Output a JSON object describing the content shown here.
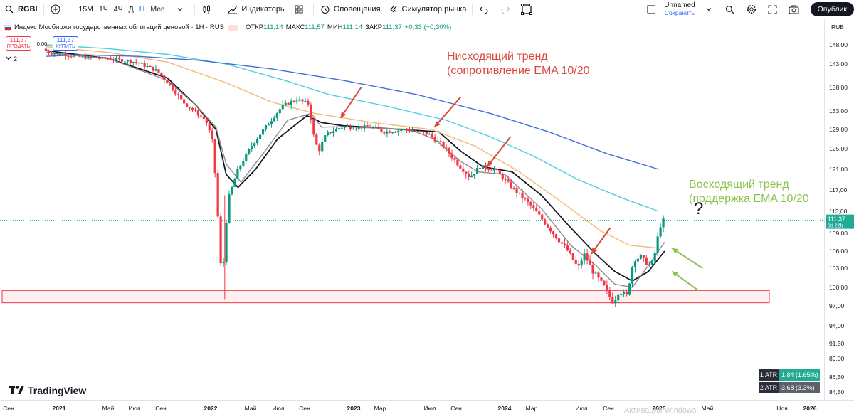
{
  "toolbar": {
    "symbol": "RGBI",
    "timeframes": [
      "15М",
      "1Ч",
      "4Ч",
      "Д",
      "Н",
      "Мес"
    ],
    "active_timeframe": "Н",
    "indicators_label": "Индикаторы",
    "alerts_label": "Оповещения",
    "replay_label": "Симулятор рынка",
    "layout_name": "Unnamed",
    "layout_save": "Сохранить",
    "publish_label": "Опублик"
  },
  "legend": {
    "title": "Индекс Мосбиржи государственных облигаций ценовой · 1Н · RUS",
    "open_label": "ОТКР",
    "open": "111,14",
    "high_label": "МАКС",
    "high": "111,57",
    "low_label": "МИН",
    "low": "111,14",
    "close_label": "ЗАКР",
    "close": "111,37",
    "change": "+0,33 (+0,30%)"
  },
  "trade": {
    "sell_price": "111,37",
    "sell_label": "ПРОДАТЬ",
    "spread": "0,00",
    "buy_price": "111,37",
    "buy_label": "КУПИТЬ"
  },
  "indicator_count": "2",
  "currency": "RUB",
  "annotations": {
    "down_line1": "Нисходящий тренд",
    "down_line2": "(сопротивление EMA 10/20",
    "up_line1": "Восходящий тренд",
    "up_line2": "(поддержка EMA 10/20",
    "question": "?"
  },
  "logo_text": "TradingView",
  "atr": [
    {
      "label": "1 ATR",
      "value": "1.84 (1.65%)"
    },
    {
      "label": "2 ATR",
      "value": "3.68 (3.3%)"
    }
  ],
  "watermark": "Активация Windows",
  "price_tag": {
    "value": "111,37",
    "countdown": "3d 22h"
  },
  "colors": {
    "up": "#089981",
    "down": "#f23645",
    "accent": "#2962ff",
    "annot_down": "#d9483b",
    "annot_up": "#8bc34a"
  },
  "chart_data": {
    "type": "candlestick",
    "y_ticks": [
      "148,00",
      "143,00",
      "138,00",
      "133,00",
      "129,00",
      "125,00",
      "121,00",
      "117,00",
      "113,00",
      "109,00",
      "106,00",
      "103,00",
      "100,00",
      "97,00",
      "94,00",
      "91,50",
      "89,00",
      "86,50",
      "84,50"
    ],
    "y_tick_values": [
      148,
      143,
      138,
      133,
      129,
      125,
      121,
      117,
      113,
      109,
      106,
      103,
      100,
      97,
      94,
      91.5,
      89,
      86.5,
      84.5
    ],
    "x_ticks": [
      "Сен",
      "2021",
      "Май",
      "Июл",
      "Сен",
      "2022",
      "Май",
      "Июл",
      "Сен",
      "2023",
      "Мар",
      "Июл",
      "Сен",
      "2024",
      "Мар",
      "Июл",
      "Сен",
      "2025",
      "Май",
      "Ноя",
      "2026"
    ],
    "support_zone": [
      97.5,
      99.5
    ],
    "last_price": 111.37,
    "price_path": [
      [
        2020.97,
        147.0
      ],
      [
        2021.0,
        146.0
      ],
      [
        2021.1,
        145.5
      ],
      [
        2021.25,
        144.7
      ],
      [
        2021.45,
        144.3
      ],
      [
        2021.6,
        143.5
      ],
      [
        2021.75,
        141.5
      ],
      [
        2021.85,
        138.0
      ],
      [
        2021.92,
        135.0
      ],
      [
        2022.0,
        133.0
      ],
      [
        2022.08,
        131.0
      ],
      [
        2022.13,
        126.0
      ],
      [
        2022.16,
        113.0
      ],
      [
        2022.19,
        100.0
      ],
      [
        2022.23,
        115.0
      ],
      [
        2022.3,
        121.0
      ],
      [
        2022.4,
        126.0
      ],
      [
        2022.5,
        130.0
      ],
      [
        2022.6,
        134.0
      ],
      [
        2022.7,
        135.5
      ],
      [
        2022.78,
        134.5
      ],
      [
        2022.82,
        127.0
      ],
      [
        2022.85,
        124.5
      ],
      [
        2022.9,
        128.0
      ],
      [
        2023.0,
        129.5
      ],
      [
        2023.2,
        129.5
      ],
      [
        2023.3,
        128.5
      ],
      [
        2023.45,
        129.0
      ],
      [
        2023.6,
        128.0
      ],
      [
        2023.7,
        125.5
      ],
      [
        2023.8,
        122.0
      ],
      [
        2023.88,
        119.5
      ],
      [
        2023.95,
        121.5
      ],
      [
        2024.05,
        121.0
      ],
      [
        2024.15,
        118.0
      ],
      [
        2024.3,
        114.0
      ],
      [
        2024.45,
        109.0
      ],
      [
        2024.55,
        106.0
      ],
      [
        2024.62,
        103.0
      ],
      [
        2024.66,
        105.5
      ],
      [
        2024.72,
        102.5
      ],
      [
        2024.8,
        100.0
      ],
      [
        2024.86,
        97.5
      ],
      [
        2024.9,
        99.5
      ],
      [
        2024.95,
        98.5
      ],
      [
        2025.0,
        104.5
      ],
      [
        2025.05,
        105.0
      ],
      [
        2025.1,
        103.5
      ],
      [
        2025.13,
        104.0
      ],
      [
        2025.16,
        108.0
      ],
      [
        2025.19,
        111.37
      ]
    ],
    "series": [
      {
        "name": "EMA 10",
        "color": "#131722",
        "points": [
          [
            2020.97,
            146.5
          ],
          [
            2021.4,
            144.4
          ],
          [
            2021.8,
            140.0
          ],
          [
            2022.0,
            134.0
          ],
          [
            2022.13,
            129.0
          ],
          [
            2022.2,
            120.0
          ],
          [
            2022.28,
            117.5
          ],
          [
            2022.4,
            121.0
          ],
          [
            2022.55,
            127.0
          ],
          [
            2022.75,
            132.0
          ],
          [
            2022.85,
            130.5
          ],
          [
            2023.0,
            129.8
          ],
          [
            2023.4,
            129.0
          ],
          [
            2023.65,
            128.5
          ],
          [
            2023.8,
            124.5
          ],
          [
            2023.95,
            121.5
          ],
          [
            2024.15,
            120.5
          ],
          [
            2024.35,
            116.0
          ],
          [
            2024.55,
            110.0
          ],
          [
            2024.72,
            105.5
          ],
          [
            2024.85,
            102.5
          ],
          [
            2024.97,
            101.0
          ],
          [
            2025.08,
            102.5
          ],
          [
            2025.19,
            106.0
          ]
        ]
      },
      {
        "name": "EMA 20",
        "color": "#8c8c8c",
        "points": [
          [
            2020.97,
            146.0
          ],
          [
            2021.4,
            144.4
          ],
          [
            2021.8,
            139.5
          ],
          [
            2022.0,
            134.0
          ],
          [
            2022.13,
            129.5
          ],
          [
            2022.2,
            122.0
          ],
          [
            2022.3,
            118.5
          ],
          [
            2022.45,
            124.0
          ],
          [
            2022.62,
            131.0
          ],
          [
            2022.78,
            132.5
          ],
          [
            2022.85,
            129.5
          ],
          [
            2023.0,
            129.6
          ],
          [
            2023.45,
            129.0
          ],
          [
            2023.62,
            127.0
          ],
          [
            2023.8,
            122.5
          ],
          [
            2023.92,
            120.5
          ],
          [
            2024.1,
            120.0
          ],
          [
            2024.35,
            113.5
          ],
          [
            2024.55,
            107.0
          ],
          [
            2024.72,
            103.5
          ],
          [
            2024.85,
            100.5
          ],
          [
            2024.97,
            100.0
          ],
          [
            2025.08,
            103.5
          ],
          [
            2025.19,
            107.5
          ]
        ]
      },
      {
        "name": "EMA 50",
        "color": "#f5b971",
        "points": [
          [
            2020.97,
            147.5
          ],
          [
            2021.4,
            146.0
          ],
          [
            2021.8,
            143.5
          ],
          [
            2022.2,
            139.0
          ],
          [
            2022.5,
            135.0
          ],
          [
            2022.8,
            132.5
          ],
          [
            2023.2,
            130.5
          ],
          [
            2023.6,
            129.0
          ],
          [
            2023.9,
            125.5
          ],
          [
            2024.2,
            120.5
          ],
          [
            2024.5,
            114.5
          ],
          [
            2024.75,
            109.5
          ],
          [
            2024.95,
            107.0
          ],
          [
            2025.15,
            106.5
          ]
        ]
      },
      {
        "name": "EMA 100",
        "color": "#4dd0e1",
        "points": [
          [
            2020.97,
            148.0
          ],
          [
            2021.4,
            147.0
          ],
          [
            2021.8,
            145.5
          ],
          [
            2022.2,
            143.0
          ],
          [
            2022.6,
            139.5
          ],
          [
            2022.9,
            136.5
          ],
          [
            2023.3,
            134.0
          ],
          [
            2023.7,
            131.0
          ],
          [
            2024.0,
            127.5
          ],
          [
            2024.3,
            123.5
          ],
          [
            2024.6,
            119.0
          ],
          [
            2024.9,
            115.5
          ],
          [
            2025.15,
            113.0
          ]
        ]
      },
      {
        "name": "EMA 200",
        "color": "#3d6fd6",
        "points": [
          [
            2020.97,
            145.0
          ],
          [
            2021.2,
            145.4
          ],
          [
            2021.6,
            145.0
          ],
          [
            2022.0,
            144.0
          ],
          [
            2022.5,
            142.0
          ],
          [
            2023.0,
            139.5
          ],
          [
            2023.5,
            136.5
          ],
          [
            2024.0,
            132.5
          ],
          [
            2024.4,
            128.5
          ],
          [
            2024.8,
            124.0
          ],
          [
            2025.15,
            121.0
          ]
        ]
      }
    ],
    "annotation_arrows": [
      {
        "color": "#d9483b",
        "from": [
          2023.12,
          138.0
        ],
        "to": [
          2022.98,
          131.5
        ]
      },
      {
        "color": "#d9483b",
        "from": [
          2023.8,
          136.0
        ],
        "to": [
          2023.62,
          129.5
        ]
      },
      {
        "color": "#d9483b",
        "from": [
          2024.14,
          127.5
        ],
        "to": [
          2023.98,
          121.5
        ]
      },
      {
        "color": "#d9483b",
        "from": [
          2024.82,
          110.0
        ],
        "to": [
          2024.69,
          105.5
        ]
      },
      {
        "color": "#8bc34a",
        "from": [
          2025.45,
          103.0
        ],
        "to": [
          2025.24,
          106.5
        ]
      },
      {
        "color": "#8bc34a",
        "from": [
          2025.42,
          99.5
        ],
        "to": [
          2025.24,
          102.5
        ]
      }
    ]
  }
}
